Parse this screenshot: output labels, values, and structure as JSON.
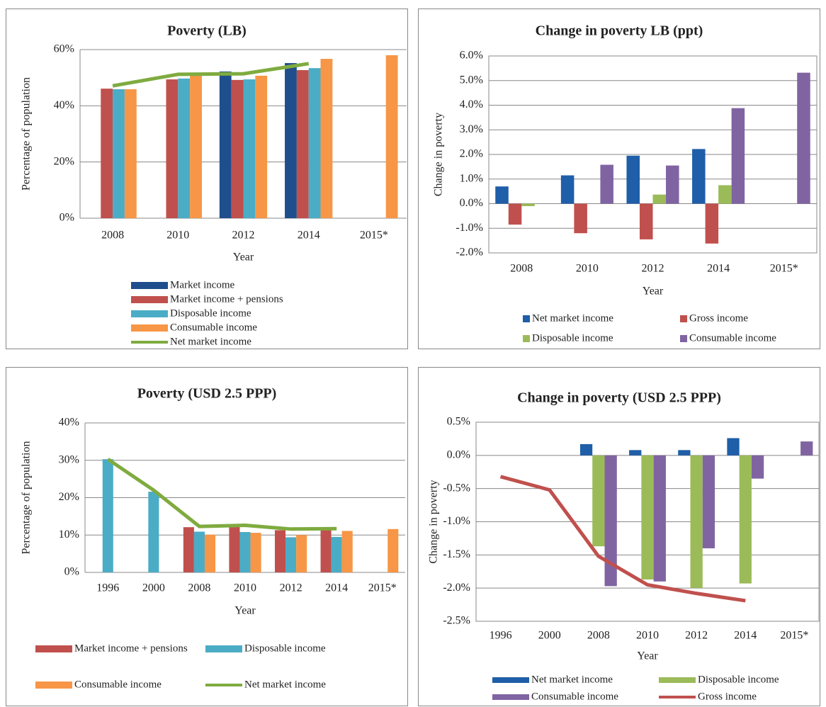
{
  "chart_data": [
    {
      "type": "bar",
      "title": "Poverty (LB)",
      "x_label": "Year",
      "y_label": "Percentage of population",
      "categories": [
        "2008",
        "2010",
        "2012",
        "2014",
        "2015*"
      ],
      "ylim": [
        0,
        60
      ],
      "yticks": [
        {
          "value": 0,
          "label": "0%"
        },
        {
          "value": 20,
          "label": "20%"
        },
        {
          "value": 40,
          "label": "40%"
        },
        {
          "value": 60,
          "label": "60%"
        }
      ],
      "grid": true,
      "series": [
        {
          "name": "Market income",
          "type": "bar",
          "color": "#1f4e8c",
          "values": [
            null,
            null,
            52.2,
            55.2,
            null
          ]
        },
        {
          "name": "Market income + pensions",
          "type": "bar",
          "color": "#c0504d",
          "values": [
            46.1,
            49.4,
            49.2,
            52.7,
            null
          ]
        },
        {
          "name": "Disposable income",
          "type": "bar",
          "color": "#4bacc6",
          "values": [
            45.9,
            49.7,
            49.4,
            53.4,
            null
          ]
        },
        {
          "name": "Consumable income",
          "type": "bar",
          "color": "#f79646",
          "values": [
            45.9,
            50.9,
            50.7,
            56.7,
            58.0
          ]
        },
        {
          "name": "Net market income",
          "type": "line",
          "color": "#7fab3f",
          "values": [
            47.1,
            51.2,
            51.4,
            55.0,
            null
          ]
        }
      ]
    },
    {
      "type": "bar",
      "title": "Change in poverty LB (ppt)",
      "x_label": "Year",
      "y_label": "Change in poverty",
      "categories": [
        "2008",
        "2010",
        "2012",
        "2014",
        "2015*"
      ],
      "ylim": [
        -2,
        6
      ],
      "yticks": [
        {
          "value": -2,
          "label": "-2.0%"
        },
        {
          "value": -1,
          "label": "-1.0%"
        },
        {
          "value": 0,
          "label": "0.0%"
        },
        {
          "value": 1,
          "label": "1.0%"
        },
        {
          "value": 2,
          "label": "2.0%"
        },
        {
          "value": 3,
          "label": "3.0%"
        },
        {
          "value": 4,
          "label": "4.0%"
        },
        {
          "value": 5,
          "label": "5.0%"
        },
        {
          "value": 6,
          "label": "6.0%"
        }
      ],
      "grid": true,
      "series": [
        {
          "name": "Net market income",
          "type": "bar",
          "color": "#1f5ea8",
          "values": [
            0.7,
            1.15,
            1.95,
            2.22,
            null
          ]
        },
        {
          "name": "Gross income",
          "type": "bar",
          "color": "#c0504d",
          "values": [
            -0.85,
            -1.2,
            -1.45,
            -1.62,
            null
          ]
        },
        {
          "name": "Disposable income",
          "type": "bar",
          "color": "#9bbb59",
          "values": [
            -0.1,
            null,
            0.37,
            0.75,
            null
          ]
        },
        {
          "name": "Consumable income",
          "type": "bar",
          "color": "#8064a2",
          "values": [
            null,
            1.58,
            1.55,
            3.88,
            5.32
          ]
        }
      ]
    },
    {
      "type": "bar",
      "title": "Poverty (USD 2.5 PPP)",
      "x_label": "Year",
      "y_label": "Percentage of population",
      "categories": [
        "1996",
        "2000",
        "2008",
        "2010",
        "2012",
        "2014",
        "2015*"
      ],
      "ylim": [
        0,
        40
      ],
      "yticks": [
        {
          "value": 0,
          "label": "0%"
        },
        {
          "value": 10,
          "label": "10%"
        },
        {
          "value": 20,
          "label": "20%"
        },
        {
          "value": 30,
          "label": "30%"
        },
        {
          "value": 40,
          "label": "40%"
        }
      ],
      "grid": true,
      "series": [
        {
          "name": "Market income + pensions",
          "type": "bar",
          "color": "#c0504d",
          "values": [
            null,
            null,
            12.1,
            12.2,
            11.3,
            11.5,
            null
          ]
        },
        {
          "name": "Disposable income",
          "type": "bar",
          "color": "#4bacc6",
          "values": [
            30.3,
            21.6,
            10.9,
            10.8,
            9.4,
            9.5,
            null
          ]
        },
        {
          "name": "Consumable income",
          "type": "bar",
          "color": "#f79646",
          "values": [
            null,
            null,
            10.1,
            10.6,
            10.0,
            11.1,
            11.6
          ]
        },
        {
          "name": "Net market income",
          "type": "line",
          "color": "#7fab3f",
          "values": [
            30.3,
            22.0,
            12.3,
            12.6,
            11.6,
            11.7,
            null
          ]
        }
      ]
    },
    {
      "type": "bar",
      "title": "Change in poverty (USD 2.5 PPP)",
      "x_label": "Year",
      "y_label": "Change in poverty",
      "categories": [
        "1996",
        "2000",
        "2008",
        "2010",
        "2012",
        "2014",
        "2015*"
      ],
      "ylim": [
        -2.5,
        0.5
      ],
      "yticks": [
        {
          "value": -2.5,
          "label": "-2.5%"
        },
        {
          "value": -2,
          "label": "-2.0%"
        },
        {
          "value": -1.5,
          "label": "-1.5%"
        },
        {
          "value": -1,
          "label": "-1.0%"
        },
        {
          "value": -0.5,
          "label": "-0.5%"
        },
        {
          "value": 0,
          "label": "0.0%"
        },
        {
          "value": 0.5,
          "label": "0.5%"
        }
      ],
      "grid": true,
      "series": [
        {
          "name": "Net market income",
          "type": "bar",
          "color": "#1f5ea8",
          "values": [
            null,
            null,
            0.17,
            0.08,
            0.08,
            0.26,
            null
          ]
        },
        {
          "name": "Disposable income",
          "type": "bar",
          "color": "#9bbb59",
          "values": [
            null,
            null,
            -1.37,
            -1.87,
            -2.0,
            -1.93,
            null
          ]
        },
        {
          "name": "Consumable income",
          "type": "bar",
          "color": "#8064a2",
          "values": [
            null,
            null,
            -1.97,
            -1.9,
            -1.4,
            -0.35,
            0.21
          ]
        },
        {
          "name": "Gross income",
          "type": "line",
          "color": "#c0504d",
          "values": [
            -0.32,
            -0.52,
            -1.52,
            -1.95,
            -2.08,
            -2.19,
            null
          ]
        }
      ]
    }
  ]
}
